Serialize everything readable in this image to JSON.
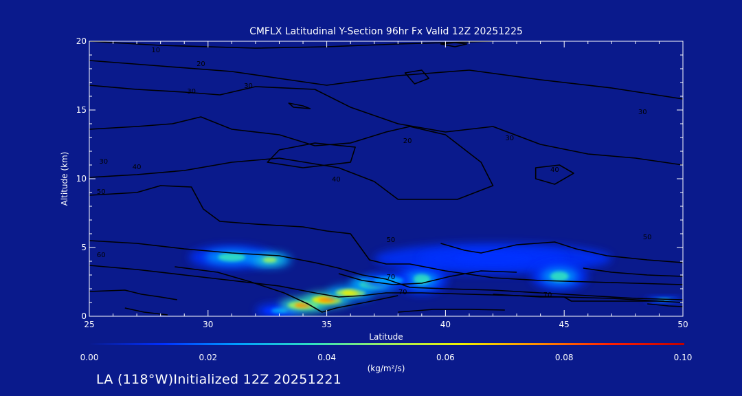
{
  "footer": "LA (118°W)Initialized 12Z 20251221",
  "chart_data": {
    "type": "heatmap",
    "title": "CMFLX Latitudinal Y-Section 96hr  Fx Valid 12Z 20251225",
    "xlabel": "Latitude",
    "ylabel": "Altitude (km)",
    "xlim": [
      25,
      50
    ],
    "ylim": [
      0,
      20
    ],
    "xticks": [
      25,
      30,
      35,
      40,
      45,
      50
    ],
    "yticks": [
      0,
      5,
      10,
      15,
      20
    ],
    "colorbar": {
      "label": "(kg/m²/s)",
      "range": [
        0.0,
        0.1
      ],
      "ticks": [
        "0.00",
        "0.02",
        "0.04",
        "0.06",
        "0.08",
        "0.10"
      ],
      "colors": [
        "#0A1A8C",
        "#0030FF",
        "#00A0FF",
        "#30E0C0",
        "#A0F060",
        "#F0F000",
        "#FF9000",
        "#FF2000",
        "#C00000"
      ]
    },
    "flux_regions": [
      {
        "lat": 31,
        "alt": 4.3,
        "rx": 1.8,
        "ry": 0.85,
        "value": 0.04
      },
      {
        "lat": 32.6,
        "alt": 4.1,
        "rx": 0.9,
        "ry": 0.55,
        "value": 0.045
      },
      {
        "lat": 39.0,
        "alt": 2.7,
        "rx": 1.1,
        "ry": 1.1,
        "value": 0.035
      },
      {
        "lat": 42.0,
        "alt": 4.2,
        "rx": 5.0,
        "ry": 1.1,
        "value": 0.018
      },
      {
        "lat": 44.8,
        "alt": 2.9,
        "rx": 1.2,
        "ry": 1.0,
        "value": 0.04
      },
      {
        "lat": 49.2,
        "alt": 1.2,
        "rx": 0.8,
        "ry": 0.22,
        "value": 0.04
      },
      {
        "lat": 36.8,
        "alt": 2.4,
        "rx": 0.8,
        "ry": 0.3,
        "value": 0.05
      }
    ],
    "flux_band": {
      "lat": [
        33.0,
        34.0,
        35.0,
        36.0,
        37.0,
        37.6
      ],
      "alt": [
        0.4,
        0.8,
        1.2,
        1.7,
        2.3,
        2.6
      ],
      "value": [
        0.02,
        0.07,
        0.08,
        0.06,
        0.04,
        0.03
      ]
    },
    "contours": [
      {
        "label": "10",
        "points": [
          [
            25,
            20
          ],
          [
            28,
            19.7
          ],
          [
            32,
            19.5
          ],
          [
            35,
            19.6
          ],
          [
            38,
            19.8
          ],
          [
            40,
            19.9
          ],
          [
            42,
            20
          ]
        ]
      },
      {
        "label": "20",
        "points": [
          [
            25,
            18.6
          ],
          [
            28,
            18.2
          ],
          [
            31,
            17.8
          ],
          [
            33,
            17.3
          ],
          [
            35,
            16.8
          ],
          [
            38,
            17.5
          ],
          [
            41,
            17.9
          ],
          [
            44,
            17.2
          ],
          [
            47,
            16.6
          ],
          [
            50,
            15.8
          ]
        ]
      },
      {
        "label": "30",
        "points": [
          [
            25,
            16.8
          ],
          [
            27,
            16.5
          ],
          [
            29,
            16.3
          ],
          [
            30.5,
            16.1
          ],
          [
            32,
            16.7
          ],
          [
            34.5,
            16.5
          ],
          [
            36,
            15.2
          ],
          [
            38,
            14.0
          ],
          [
            40,
            13.4
          ],
          [
            42,
            13.8
          ],
          [
            44,
            12.5
          ],
          [
            46,
            11.8
          ],
          [
            48,
            11.5
          ],
          [
            50,
            11.0
          ]
        ]
      },
      {
        "label": "40",
        "points": [
          [
            25,
            13.6
          ],
          [
            27,
            13.8
          ],
          [
            28.5,
            14.0
          ],
          [
            29.7,
            14.5
          ],
          [
            31,
            13.6
          ],
          [
            33,
            13.2
          ],
          [
            34.5,
            12.4
          ],
          [
            36,
            12.6
          ],
          [
            37.5,
            13.4
          ],
          [
            38.5,
            13.8
          ],
          [
            40,
            13.2
          ],
          [
            41.5,
            11.2
          ],
          [
            42,
            9.5
          ],
          [
            40.5,
            8.5
          ],
          [
            38,
            8.5
          ],
          [
            37,
            9.8
          ],
          [
            35.5,
            10.8
          ],
          [
            33,
            11.5
          ],
          [
            31,
            11.2
          ],
          [
            29,
            10.6
          ],
          [
            27,
            10.3
          ],
          [
            25,
            10.1
          ]
        ]
      },
      {
        "label": "50",
        "points": [
          [
            25,
            8.8
          ],
          [
            27,
            9.0
          ],
          [
            28,
            9.5
          ],
          [
            29.3,
            9.4
          ],
          [
            29.8,
            7.8
          ],
          [
            30.5,
            6.9
          ],
          [
            32,
            6.7
          ],
          [
            34,
            6.5
          ],
          [
            35,
            6.2
          ],
          [
            36,
            6.0
          ],
          [
            36.8,
            4.1
          ],
          [
            37.5,
            3.8
          ],
          [
            38.5,
            3.8
          ],
          [
            40,
            3.3
          ],
          [
            42,
            2.8
          ],
          [
            44,
            2.6
          ],
          [
            46,
            2.5
          ],
          [
            48,
            2.4
          ],
          [
            50,
            2.3
          ]
        ]
      },
      {
        "label": "60",
        "points": [
          [
            25,
            5.5
          ],
          [
            27,
            5.3
          ],
          [
            29,
            4.9
          ],
          [
            31,
            4.6
          ],
          [
            33,
            4.4
          ],
          [
            34.5,
            3.9
          ],
          [
            35.5,
            3.5
          ],
          [
            36.5,
            3.0
          ],
          [
            37.5,
            2.7
          ],
          [
            38.5,
            2.1
          ],
          [
            40,
            2.0
          ],
          [
            42,
            1.9
          ],
          [
            44,
            1.7
          ],
          [
            46,
            1.5
          ],
          [
            48,
            1.3
          ],
          [
            50,
            1.2
          ]
        ]
      },
      {
        "label": "70",
        "points": [
          [
            25,
            3.7
          ],
          [
            27,
            3.4
          ],
          [
            29,
            3.0
          ],
          [
            31,
            2.6
          ],
          [
            33,
            2.2
          ],
          [
            34.5,
            1.7
          ],
          [
            35.5,
            1.4
          ],
          [
            36.5,
            1.5
          ],
          [
            37.5,
            1.7
          ],
          [
            39,
            1.7
          ],
          [
            41,
            1.6
          ],
          [
            43,
            1.5
          ],
          [
            45,
            1.4
          ],
          [
            47,
            1.3
          ],
          [
            50,
            1.0
          ]
        ]
      },
      {
        "label": "",
        "points": [
          [
            28.6,
            3.6
          ],
          [
            30.4,
            3.2
          ],
          [
            31.8,
            2.5
          ],
          [
            33.2,
            1.7
          ],
          [
            34.2,
            0.9
          ],
          [
            34.8,
            0.3
          ],
          [
            35.4,
            0.6
          ],
          [
            36.6,
            1.0
          ],
          [
            38.0,
            1.5
          ]
        ]
      },
      {
        "label": "",
        "points": [
          [
            25,
            1.8
          ],
          [
            26.5,
            1.9
          ],
          [
            27.2,
            1.6
          ],
          [
            28.0,
            1.4
          ],
          [
            28.7,
            1.2
          ]
        ]
      },
      {
        "label": "",
        "points": [
          [
            26.5,
            0.6
          ],
          [
            27.3,
            0.3
          ],
          [
            28.3,
            0.1
          ]
        ]
      },
      {
        "label": "",
        "points": [
          [
            38,
            0.3
          ],
          [
            39.5,
            0.5
          ],
          [
            41,
            0.5
          ],
          [
            42.5,
            0.45
          ]
        ]
      },
      {
        "label": "",
        "points": [
          [
            48.5,
            0.9
          ],
          [
            49.4,
            0.75
          ],
          [
            50,
            0.7
          ]
        ]
      },
      {
        "label": "",
        "points": [
          [
            39.8,
            5.3
          ],
          [
            40.8,
            4.8
          ],
          [
            41.5,
            4.6
          ],
          [
            43.0,
            5.2
          ],
          [
            44.6,
            5.4
          ],
          [
            45.5,
            4.9
          ],
          [
            46.8,
            4.4
          ],
          [
            48.5,
            4.1
          ],
          [
            50,
            3.9
          ]
        ]
      },
      {
        "label": "",
        "points": [
          [
            35.5,
            3.1
          ],
          [
            36.5,
            2.6
          ],
          [
            37.8,
            2.3
          ],
          [
            39,
            2.4
          ],
          [
            40.2,
            2.9
          ],
          [
            41.5,
            3.3
          ],
          [
            43.0,
            3.2
          ]
        ]
      },
      {
        "label": "",
        "points": [
          [
            45.8,
            3.5
          ],
          [
            47,
            3.2
          ],
          [
            48.5,
            3.0
          ],
          [
            50,
            2.9
          ]
        ]
      },
      {
        "label": "",
        "points": [
          [
            42.0,
            1.6
          ],
          [
            44.0,
            1.4
          ],
          [
            45.0,
            1.4
          ],
          [
            45.3,
            1.1
          ],
          [
            47.0,
            1.1
          ],
          [
            49.2,
            1.1
          ]
        ]
      }
    ],
    "closed_contours": [
      {
        "label": "",
        "points": [
          [
            33.0,
            12.1
          ],
          [
            34.5,
            12.6
          ],
          [
            36.2,
            12.3
          ],
          [
            36.0,
            11.2
          ],
          [
            34.0,
            10.8
          ],
          [
            32.5,
            11.2
          ],
          [
            33.0,
            12.1
          ]
        ]
      },
      {
        "label": "40",
        "points": [
          [
            43.8,
            10.8
          ],
          [
            44.8,
            11.0
          ],
          [
            45.4,
            10.4
          ],
          [
            44.6,
            9.6
          ],
          [
            43.8,
            10.0
          ],
          [
            43.8,
            10.8
          ]
        ]
      },
      {
        "label": "",
        "points": [
          [
            38.3,
            17.7
          ],
          [
            39.0,
            17.9
          ],
          [
            39.3,
            17.3
          ],
          [
            38.7,
            16.9
          ],
          [
            38.3,
            17.7
          ]
        ]
      },
      {
        "label": "",
        "points": [
          [
            33.4,
            15.5
          ],
          [
            34.0,
            15.3
          ],
          [
            34.3,
            15.1
          ],
          [
            33.6,
            15.2
          ],
          [
            33.4,
            15.5
          ]
        ]
      },
      {
        "label": "",
        "points": [
          [
            39.8,
            19.8
          ],
          [
            40.4,
            19.9
          ],
          [
            40.9,
            19.8
          ],
          [
            40.4,
            19.6
          ],
          [
            39.8,
            19.8
          ]
        ]
      }
    ],
    "contour_labels": [
      {
        "text": "10",
        "lat": 27.8,
        "alt": 19.4
      },
      {
        "text": "20",
        "lat": 29.7,
        "alt": 18.4
      },
      {
        "text": "30",
        "lat": 29.3,
        "alt": 16.4
      },
      {
        "text": "30",
        "lat": 31.7,
        "alt": 16.8
      },
      {
        "text": "20",
        "lat": 38.4,
        "alt": 12.8
      },
      {
        "text": "30",
        "lat": 25.6,
        "alt": 11.3
      },
      {
        "text": "40",
        "lat": 27.0,
        "alt": 10.9
      },
      {
        "text": "40",
        "lat": 35.4,
        "alt": 10.0
      },
      {
        "text": "50",
        "lat": 25.5,
        "alt": 9.1
      },
      {
        "text": "30",
        "lat": 42.7,
        "alt": 13.0
      },
      {
        "text": "30",
        "lat": 48.3,
        "alt": 14.9
      },
      {
        "text": "40",
        "lat": 44.6,
        "alt": 10.7
      },
      {
        "text": "50",
        "lat": 37.7,
        "alt": 5.6
      },
      {
        "text": "60",
        "lat": 25.5,
        "alt": 4.5
      },
      {
        "text": "70",
        "lat": 37.7,
        "alt": 2.9
      },
      {
        "text": "70",
        "lat": 38.2,
        "alt": 1.8
      },
      {
        "text": "50",
        "lat": 48.5,
        "alt": 5.8
      },
      {
        "text": "70",
        "lat": 44.3,
        "alt": 1.6
      }
    ]
  }
}
